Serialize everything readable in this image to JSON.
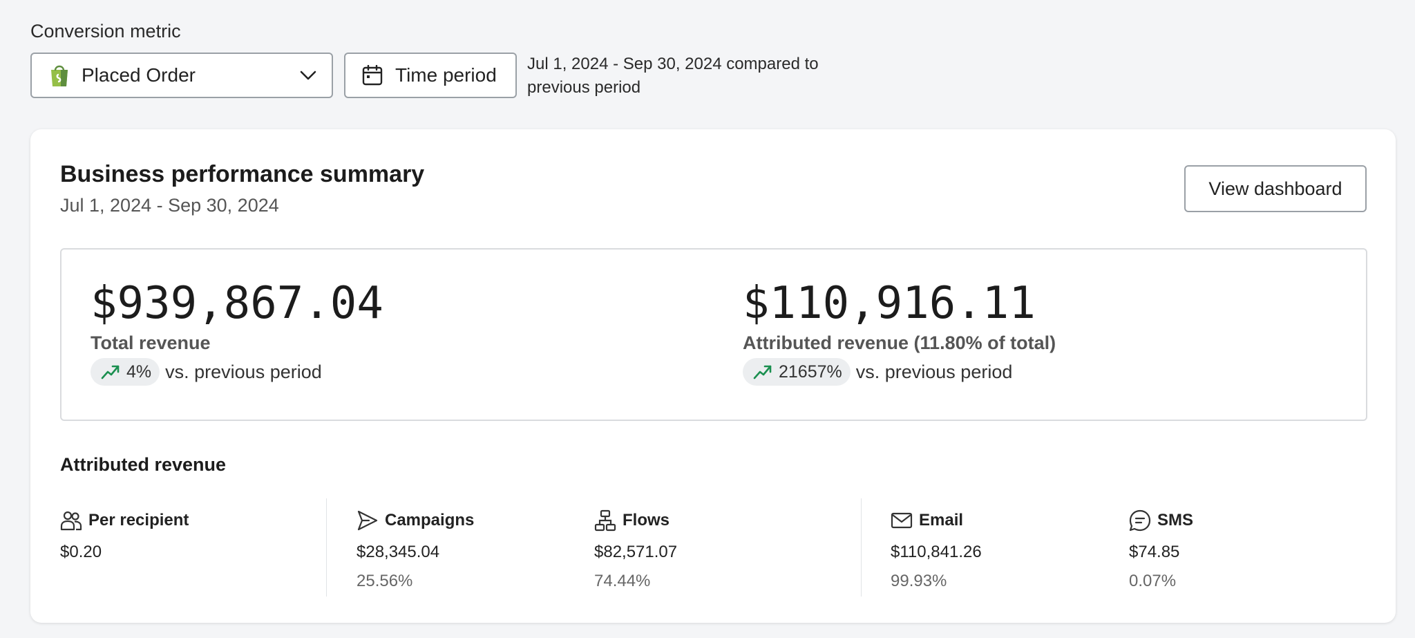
{
  "conversion": {
    "label": "Conversion metric",
    "selected": "Placed Order",
    "time_period_label": "Time period",
    "period_text": "Jul 1, 2024 - Sep 30, 2024 compared to previous period"
  },
  "summary": {
    "title": "Business performance summary",
    "date_range": "Jul 1, 2024 - Sep 30, 2024",
    "view_button": "View dashboard",
    "total": {
      "value": "$939,867.04",
      "label": "Total revenue",
      "delta": "4%",
      "delta_suffix": "vs. previous period"
    },
    "attributed": {
      "value": "$110,916.11",
      "label": "Attributed revenue (11.80% of total)",
      "delta": "21657%",
      "delta_suffix": "vs. previous period"
    }
  },
  "attributed_revenue": {
    "title": "Attributed revenue",
    "per_recipient": {
      "label": "Per recipient",
      "value": "$0.20"
    },
    "campaigns": {
      "label": "Campaigns",
      "value": "$28,345.04",
      "share": "25.56%"
    },
    "flows": {
      "label": "Flows",
      "value": "$82,571.07",
      "share": "74.44%"
    },
    "email": {
      "label": "Email",
      "value": "$110,841.26",
      "share": "99.93%"
    },
    "sms": {
      "label": "SMS",
      "value": "$74.85",
      "share": "0.07%"
    }
  },
  "colors": {
    "shopify_green": "#95bf47",
    "trend_green": "#1a8f4f",
    "background": "#f4f5f7"
  },
  "icons": {
    "select": "shopify-bag-icon",
    "dropdown": "chevron-down-icon",
    "time": "calendar-icon",
    "trend": "trend-up-icon",
    "per_recipient": "users-icon",
    "campaigns": "send-icon",
    "flows": "flow-icon",
    "email": "mail-icon",
    "sms": "chat-icon"
  }
}
